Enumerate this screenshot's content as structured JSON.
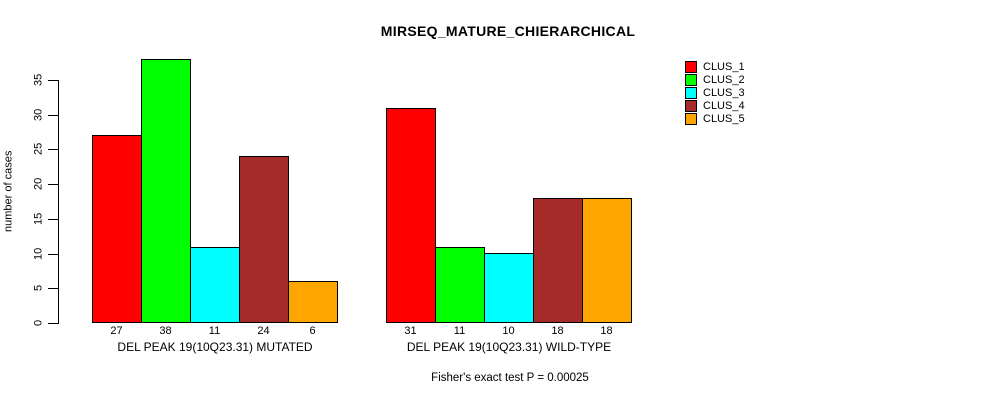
{
  "title": "MIRSEQ_MATURE_CHIERARCHICAL",
  "y_axis": {
    "label": "number of cases",
    "ticks": [
      0,
      5,
      10,
      15,
      20,
      25,
      30,
      35
    ]
  },
  "footer": {
    "caption": "Fisher's exact test P = 0.00025"
  },
  "legend": {
    "position": "top-right",
    "items": [
      {
        "label": "CLUS_1",
        "color": "#FF0000"
      },
      {
        "label": "CLUS_2",
        "color": "#00FF00"
      },
      {
        "label": "CLUS_3",
        "color": "#00FFFF"
      },
      {
        "label": "CLUS_4",
        "color": "#A52A2A"
      },
      {
        "label": "CLUS_5",
        "color": "#FFA500"
      }
    ]
  },
  "chart_data": {
    "type": "bar",
    "title": "MIRSEQ_MATURE_CHIERARCHICAL",
    "xlabel": "",
    "ylabel": "number of cases",
    "ylim": [
      0,
      38
    ],
    "y_ticks": [
      0,
      5,
      10,
      15,
      20,
      25,
      30,
      35
    ],
    "grid": false,
    "legend_position": "top-right",
    "categories": [
      "DEL PEAK 19(10Q23.31) MUTATED",
      "DEL PEAK 19(10Q23.31) WILD-TYPE"
    ],
    "series": [
      {
        "name": "CLUS_1",
        "color": "#FF0000",
        "values": [
          27,
          31
        ]
      },
      {
        "name": "CLUS_2",
        "color": "#00FF00",
        "values": [
          38,
          11
        ]
      },
      {
        "name": "CLUS_3",
        "color": "#00FFFF",
        "values": [
          11,
          10
        ]
      },
      {
        "name": "CLUS_4",
        "color": "#A52A2A",
        "values": [
          24,
          18
        ]
      },
      {
        "name": "CLUS_5",
        "color": "#FFA500",
        "values": [
          6,
          18
        ]
      }
    ],
    "bar_value_labels": [
      [
        27,
        38,
        11,
        24,
        6
      ],
      [
        31,
        11,
        10,
        18,
        18
      ]
    ],
    "caption": "Fisher's exact test P = 0.00025"
  }
}
